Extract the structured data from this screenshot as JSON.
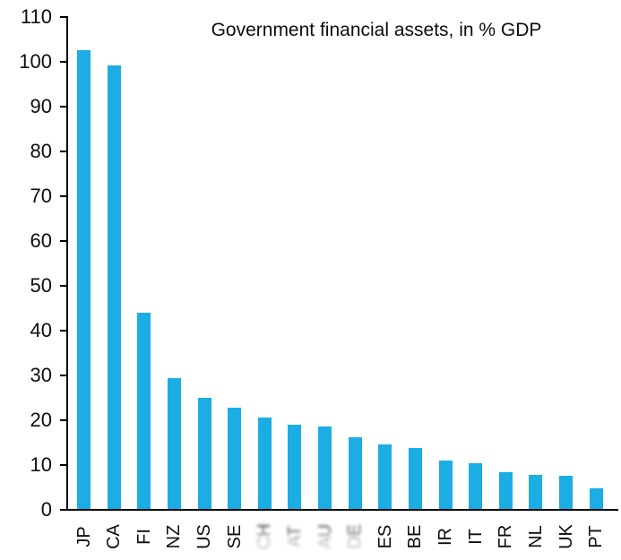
{
  "chart_data": {
    "type": "bar",
    "title": "Government financial assets, in % GDP",
    "categories": [
      "JP",
      "CA",
      "FI",
      "NZ",
      "US",
      "SE",
      "CH",
      "AT",
      "AU",
      "DE",
      "ES",
      "BE",
      "IR",
      "IT",
      "FR",
      "NL",
      "UK",
      "PT"
    ],
    "values": [
      102.5,
      99,
      43.8,
      29.2,
      24.8,
      22.6,
      20.4,
      18.8,
      18.4,
      16.1,
      14.4,
      13.7,
      10.8,
      10.3,
      8.3,
      7.7,
      7.4,
      4.7
    ],
    "smudged_categories": [
      "CH",
      "AT",
      "AU",
      "DE"
    ],
    "xlabel": "",
    "ylabel": "",
    "ylim": [
      0,
      110
    ],
    "yticks": [
      0,
      10,
      20,
      30,
      40,
      50,
      60,
      70,
      80,
      90,
      100,
      110
    ],
    "grid": false,
    "legend": false,
    "bar_color": "#1CADE4",
    "axis_color": "#000000",
    "text_color": "#0D0D0D",
    "background_color": "#FFFFFF",
    "x_tick_label_rotation_deg": 90
  }
}
